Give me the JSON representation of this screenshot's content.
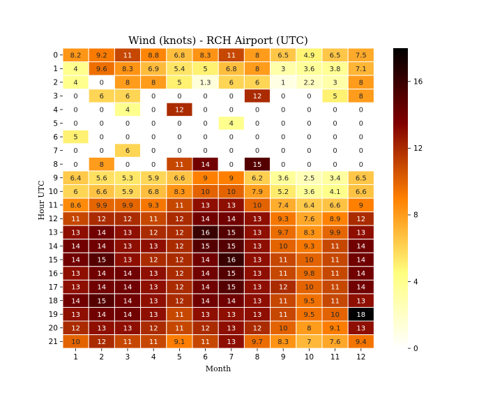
{
  "chart_data": {
    "type": "heatmap",
    "title": "Wind (knots) - RCH Airport (UTC)",
    "xlabel": "Month",
    "ylabel": "Hour UTC",
    "x_categories": [
      "1",
      "2",
      "3",
      "4",
      "5",
      "6",
      "7",
      "8",
      "9",
      "10",
      "11",
      "12"
    ],
    "y_categories": [
      "0",
      "1",
      "2",
      "3",
      "4",
      "5",
      "6",
      "7",
      "8",
      "9",
      "10",
      "11",
      "12",
      "13",
      "14",
      "15",
      "16",
      "17",
      "18",
      "19",
      "20",
      "21"
    ],
    "values": [
      [
        8.2,
        9.2,
        11,
        8.8,
        6.8,
        8.3,
        11,
        8,
        6.5,
        4.9,
        6.5,
        7.5
      ],
      [
        4,
        9.6,
        8.3,
        6.9,
        5.4,
        5,
        6.8,
        8,
        3,
        3.6,
        3.8,
        7.1
      ],
      [
        4,
        0,
        8,
        8,
        5,
        1.3,
        6,
        6,
        1,
        2.2,
        3,
        8
      ],
      [
        0,
        6,
        6,
        0,
        0,
        0,
        0,
        12,
        0,
        0,
        5,
        8
      ],
      [
        0,
        0,
        4,
        0,
        12,
        0,
        0,
        0,
        0,
        0,
        0,
        0
      ],
      [
        0,
        0,
        0,
        0,
        0,
        0,
        4,
        0,
        0,
        0,
        0,
        0
      ],
      [
        5,
        0,
        0,
        0,
        0,
        0,
        0,
        0,
        0,
        0,
        0,
        0
      ],
      [
        0,
        0,
        6,
        0,
        0,
        0,
        0,
        0,
        0,
        0,
        0,
        0
      ],
      [
        0,
        8,
        0,
        0,
        11,
        14,
        0,
        15,
        0,
        0,
        0,
        0
      ],
      [
        6.4,
        5.6,
        5.3,
        5.9,
        6.6,
        9,
        9,
        6.2,
        3.6,
        2.5,
        3.4,
        6.5
      ],
      [
        6,
        6.6,
        5.9,
        6.8,
        8.3,
        10,
        10,
        7.9,
        5.2,
        3.6,
        4.1,
        6.6
      ],
      [
        8.6,
        9.9,
        9.9,
        9.3,
        11,
        13,
        13,
        10,
        7.4,
        6.4,
        6.6,
        9
      ],
      [
        11,
        12,
        12,
        11,
        12,
        14,
        14,
        13,
        9.3,
        7.6,
        8.9,
        12
      ],
      [
        13,
        14,
        13,
        12,
        12,
        16,
        15,
        13,
        9.7,
        8.3,
        9.9,
        13
      ],
      [
        14,
        14,
        13,
        13,
        12,
        15,
        15,
        13,
        10,
        9.3,
        11,
        14
      ],
      [
        14,
        15,
        13,
        12,
        12,
        14,
        16,
        13,
        11,
        10,
        11,
        14
      ],
      [
        13,
        14,
        14,
        13,
        12,
        14,
        15,
        13,
        11,
        9.8,
        11,
        14
      ],
      [
        13,
        14,
        14,
        13,
        12,
        14,
        15,
        13,
        12,
        10,
        11,
        14
      ],
      [
        14,
        15,
        14,
        13,
        12,
        14,
        14,
        13,
        11,
        9.5,
        11,
        13
      ],
      [
        13,
        14,
        14,
        13,
        11,
        13,
        13,
        13,
        11,
        9.5,
        10,
        18
      ],
      [
        12,
        13,
        13,
        12,
        11,
        12,
        13,
        12,
        10,
        8,
        9.1,
        13
      ],
      [
        10,
        12,
        11,
        11,
        9.1,
        11,
        13,
        9.7,
        8.3,
        7,
        7.6,
        9.4
      ]
    ],
    "colormap": "afmhot_r",
    "vmin": 0,
    "vmax": 18,
    "colorbar_ticks": [
      0,
      4,
      8,
      12,
      16
    ],
    "annotated": true,
    "grid": false,
    "legend": "colorbar-right"
  }
}
